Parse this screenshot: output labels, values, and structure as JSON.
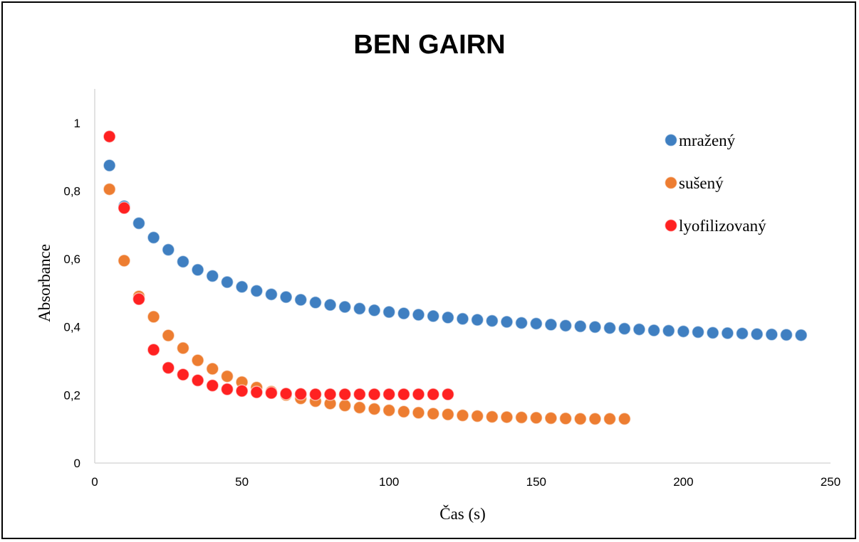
{
  "chart_data": {
    "type": "scatter",
    "title": "BEN GAIRN",
    "xlabel": "Čas (s)",
    "ylabel": "Absorbance",
    "xlim": [
      0,
      250
    ],
    "ylim": [
      0,
      1.1
    ],
    "xticks": [
      0,
      50,
      100,
      150,
      200,
      250
    ],
    "xtick_labels": [
      "0",
      "50",
      "100",
      "150",
      "200",
      "250"
    ],
    "yticks": [
      0,
      0.2,
      0.4,
      0.6,
      0.8,
      1
    ],
    "ytick_labels": [
      "0",
      "0,2",
      "0,4",
      "0,6",
      "0,8",
      "1"
    ],
    "grid": false,
    "legend_position": "right",
    "series": [
      {
        "name": "mražený",
        "color": "#3f7fc1",
        "x": [
          5,
          10,
          15,
          20,
          25,
          30,
          35,
          40,
          45,
          50,
          55,
          60,
          65,
          70,
          75,
          80,
          85,
          90,
          95,
          100,
          105,
          110,
          115,
          120,
          125,
          130,
          135,
          140,
          145,
          150,
          155,
          160,
          165,
          170,
          175,
          180,
          185,
          190,
          195,
          200,
          205,
          210,
          215,
          220,
          225,
          230,
          235,
          240
        ],
        "y": [
          0.875,
          0.755,
          0.705,
          0.663,
          0.627,
          0.592,
          0.568,
          0.55,
          0.532,
          0.518,
          0.506,
          0.496,
          0.488,
          0.48,
          0.472,
          0.465,
          0.459,
          0.454,
          0.449,
          0.444,
          0.44,
          0.436,
          0.432,
          0.428,
          0.424,
          0.421,
          0.418,
          0.415,
          0.412,
          0.41,
          0.407,
          0.404,
          0.402,
          0.4,
          0.397,
          0.395,
          0.393,
          0.39,
          0.389,
          0.387,
          0.385,
          0.383,
          0.382,
          0.381,
          0.379,
          0.378,
          0.377,
          0.376
        ]
      },
      {
        "name": "sušený",
        "color": "#ed7d31",
        "x": [
          5,
          10,
          15,
          20,
          25,
          30,
          35,
          40,
          45,
          50,
          55,
          60,
          65,
          70,
          75,
          80,
          85,
          90,
          95,
          100,
          105,
          110,
          115,
          120,
          125,
          130,
          135,
          140,
          145,
          150,
          155,
          160,
          165,
          170,
          175,
          180
        ],
        "y": [
          0.805,
          0.595,
          0.49,
          0.43,
          0.375,
          0.338,
          0.302,
          0.277,
          0.255,
          0.238,
          0.222,
          0.21,
          0.2,
          0.19,
          0.182,
          0.175,
          0.169,
          0.163,
          0.159,
          0.155,
          0.151,
          0.148,
          0.145,
          0.143,
          0.14,
          0.138,
          0.136,
          0.135,
          0.134,
          0.133,
          0.132,
          0.131,
          0.13,
          0.13,
          0.13,
          0.13
        ]
      },
      {
        "name": "lyofilizovaný",
        "color": "#ff2121",
        "x": [
          5,
          10,
          15,
          20,
          25,
          30,
          35,
          40,
          45,
          50,
          55,
          60,
          65,
          70,
          75,
          80,
          85,
          90,
          95,
          100,
          105,
          110,
          115,
          120
        ],
        "y": [
          0.96,
          0.75,
          0.482,
          0.333,
          0.28,
          0.26,
          0.243,
          0.228,
          0.217,
          0.212,
          0.208,
          0.206,
          0.204,
          0.203,
          0.202,
          0.202,
          0.202,
          0.202,
          0.202,
          0.202,
          0.202,
          0.202,
          0.202,
          0.202
        ]
      }
    ]
  }
}
